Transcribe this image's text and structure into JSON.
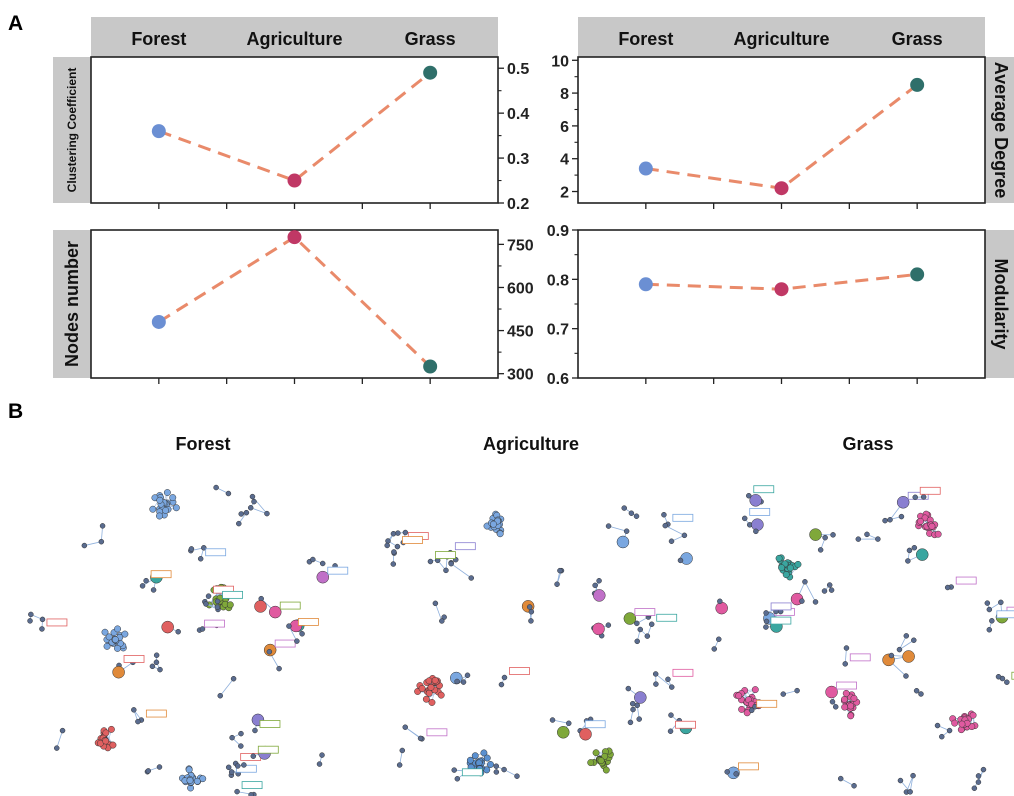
{
  "panel_a_label": "A",
  "panel_b_label": "B",
  "colors": {
    "forest": "#6b8fd3",
    "agriculture": "#c03865",
    "grass": "#2f6f6a",
    "line": "#e98a6a",
    "strip": "#c8c8c8"
  },
  "chart_data": [
    {
      "type": "line",
      "id": "cc",
      "categories": [
        "Forest",
        "Agriculture",
        "Grass"
      ],
      "values": [
        0.36,
        0.25,
        0.49
      ],
      "ylabel": "Clustering Coefficient",
      "ylim": [
        0.2,
        0.525
      ],
      "yticks": [
        0.2,
        0.3,
        0.4,
        0.5
      ],
      "ytick_labels": [
        "0.2",
        "0.3",
        "0.4",
        "0.5"
      ],
      "show_header": true,
      "grid": false
    },
    {
      "type": "line",
      "id": "deg",
      "categories": [
        "Forest",
        "Agriculture",
        "Grass"
      ],
      "values": [
        3.4,
        2.2,
        8.5
      ],
      "ylabel": "Average Degree",
      "ylim": [
        1.3,
        10.2
      ],
      "yticks": [
        2,
        4,
        6,
        8,
        10
      ],
      "ytick_labels": [
        "2",
        "4",
        "6",
        "8",
        "10"
      ],
      "show_header": true,
      "grid": false
    },
    {
      "type": "line",
      "id": "nodes",
      "categories": [
        "Forest",
        "Agriculture",
        "Grass"
      ],
      "values": [
        480,
        775,
        325
      ],
      "ylabel": "Nodes number",
      "ylim": [
        285,
        800
      ],
      "yticks": [
        300,
        450,
        600,
        750
      ],
      "ytick_labels": [
        "300",
        "450",
        "600",
        "750"
      ],
      "show_header": false,
      "grid": false
    },
    {
      "type": "line",
      "id": "mod",
      "categories": [
        "Forest",
        "Agriculture",
        "Grass"
      ],
      "values": [
        0.79,
        0.78,
        0.81
      ],
      "ylabel": "Modularity",
      "ylim": [
        0.6,
        0.9
      ],
      "yticks": [
        0.6,
        0.7,
        0.8,
        0.9
      ],
      "ytick_labels": [
        "0.6",
        "0.7",
        "0.8",
        "0.9"
      ],
      "show_header": false,
      "grid": false
    }
  ],
  "networks": {
    "titles": [
      "Forest",
      "Agriculture",
      "Grass"
    ]
  }
}
